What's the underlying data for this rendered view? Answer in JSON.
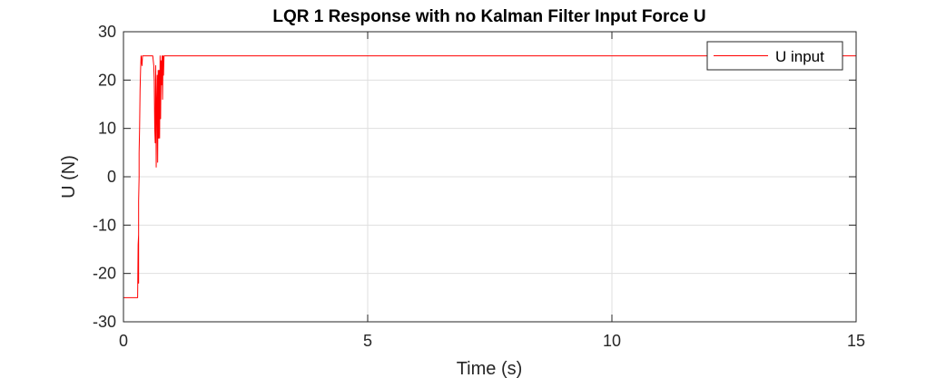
{
  "chart_data": {
    "type": "line",
    "title": "LQR 1 Response with no Kalman Filter  Input Force U",
    "xlabel": "Time (s)",
    "ylabel": "U (N)",
    "xlim": [
      0,
      15
    ],
    "ylim": [
      -30,
      30
    ],
    "xticks": [
      0,
      5,
      10,
      15
    ],
    "xtick_labels": [
      "0",
      "5",
      "10",
      "15"
    ],
    "yticks": [
      30,
      20,
      10,
      0,
      -10,
      -20,
      -30
    ],
    "ytick_labels": [
      "30",
      "20",
      "10",
      "0",
      "-10",
      "-20",
      "-30"
    ],
    "grid": true,
    "legend_position": "top-right",
    "series": [
      {
        "name": "U input",
        "color": "#ff0000",
        "x": [
          0,
          0.29,
          0.3,
          0.31,
          0.31,
          0.31,
          0.32,
          0.32,
          0.33,
          0.34,
          0.35,
          0.36,
          0.37,
          0.38,
          0.39,
          0.4,
          0.6,
          0.62,
          0.63,
          0.64,
          0.65,
          0.66,
          0.67,
          0.68,
          0.69,
          0.7,
          0.71,
          0.72,
          0.73,
          0.74,
          0.75,
          0.76,
          0.77,
          0.78,
          0.79,
          0.8,
          0.81,
          0.82,
          0.83,
          0.85,
          15
        ],
        "y": [
          -25,
          -25,
          -14,
          -12,
          -22,
          -5,
          0,
          5,
          10,
          18,
          22,
          25,
          24,
          23,
          25,
          25,
          25,
          23,
          20,
          10,
          7,
          23,
          2,
          15,
          21,
          3,
          22,
          8,
          22,
          8,
          25,
          12,
          24,
          19,
          25,
          16,
          25,
          21,
          25,
          25,
          25
        ]
      }
    ]
  }
}
